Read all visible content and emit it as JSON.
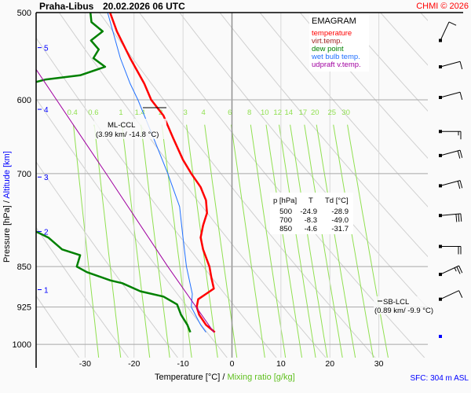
{
  "header": {
    "station": "Praha-Libus",
    "time": "20.02.2026 06 UTC",
    "copyright": "CHMI © 2026"
  },
  "legend": {
    "title": "EMAGRAM",
    "items": [
      {
        "label": "temperature",
        "color": "#ff0000"
      },
      {
        "label": "virt.temp.",
        "color": "#a02020"
      },
      {
        "label": "dew point",
        "color": "#008000"
      },
      {
        "label": "wet bulb temp.",
        "color": "#2070ff"
      },
      {
        "label": "udpraft v.temp.",
        "color": "#a000a0"
      }
    ]
  },
  "table": {
    "headers": [
      "p [hPa]",
      "T",
      "Td [°C]"
    ],
    "rows": [
      [
        "500",
        "-24.9",
        "-28.9"
      ],
      [
        "700",
        "-8.3",
        "-49.0"
      ],
      [
        "850",
        "-4.6",
        "-31.7"
      ]
    ]
  },
  "annotations": {
    "ml_ccl": {
      "label": "ML-CCL",
      "detail": "(3.99 km/ -14.8 °C)"
    },
    "sb_lcl": {
      "label": "SB-LCL",
      "detail": "(0.89 km/ -9.9 °C)"
    }
  },
  "axes": {
    "ylabel": "Pressure [hPa]",
    "ylabel_sep": "/",
    "ylabel2": "Altitude [km]",
    "xlabel": "Temperature [°C]",
    "xlabel_sep": "/",
    "xlabel2": "Mixing ratio [g/kg]",
    "sfc": "SFC: 304 m ASL"
  },
  "chart_data": {
    "type": "line",
    "title": "EMAGRAM",
    "xlim": [
      -40,
      40
    ],
    "ylim_hpa": [
      500,
      1030
    ],
    "y_scale": "log",
    "x_ticks": [
      "-30",
      "-20",
      "-10",
      "0",
      "10",
      "20",
      "30"
    ],
    "y_ticks": [
      "500",
      "600",
      "700",
      "850",
      "925",
      "1000"
    ],
    "altitude_ticks_km": [
      "5",
      "4",
      "3",
      "2",
      "1"
    ],
    "altitude_tick_pressures": [
      538,
      612,
      705,
      790,
      892
    ],
    "mixing_ratio_labels": [
      "0.4",
      "0.6",
      "1",
      "1.4",
      "2",
      "3",
      "4",
      "6",
      "8",
      "10",
      "12",
      "14",
      "17",
      "20",
      "25",
      "30"
    ],
    "colors": {
      "mixing_ratio": "#90e050",
      "dry_adiabat": "#d0d0d0",
      "grid": "#b0b0b0",
      "altitude": "#0000ff"
    },
    "series": [
      {
        "name": "temperature",
        "color": "#ff0000",
        "p": [
          500,
          520,
          550,
          580,
          600,
          620,
          650,
          680,
          700,
          720,
          740,
          760,
          780,
          800,
          820,
          850,
          870,
          890,
          900,
          910,
          925,
          940,
          960,
          975
        ],
        "t": [
          -24.9,
          -23.5,
          -20.8,
          -17.9,
          -16.5,
          -14,
          -12,
          -10,
          -8.3,
          -6.4,
          -5.3,
          -5.1,
          -5.9,
          -6.4,
          -5.9,
          -4.6,
          -4.2,
          -3.7,
          -5.3,
          -6.9,
          -7.2,
          -6.7,
          -5.3,
          -3.5
        ]
      },
      {
        "name": "dew point",
        "color": "#008000",
        "p": [
          500,
          510,
          520,
          530,
          540,
          550,
          560,
          570,
          575,
          578
        ],
        "t": [
          -28.9,
          -28.7,
          -26.4,
          -28.8,
          -27.2,
          -28.3,
          -25.9,
          -31,
          -38,
          -40
        ]
      },
      {
        "name": "dew point",
        "color": "#008000",
        "p": [
          790,
          800,
          820,
          830,
          850,
          860,
          875,
          880,
          895,
          905,
          920,
          940,
          960,
          975
        ],
        "t": [
          -40,
          -37.5,
          -34.7,
          -31,
          -31.7,
          -29.6,
          -24.8,
          -22.4,
          -18.7,
          -14,
          -11.2,
          -10.4,
          -9.1,
          -8.5
        ]
      },
      {
        "name": "wet bulb temp.",
        "color": "#2070ff",
        "p": [
          500,
          550,
          580,
          600,
          650,
          700,
          750,
          800,
          850,
          900,
          925,
          960,
          975
        ],
        "t": [
          -25.4,
          -22.8,
          -20.8,
          -19.2,
          -16,
          -13.1,
          -10.7,
          -10,
          -9.3,
          -8.1,
          -8.3,
          -6.4,
          -5.3
        ]
      },
      {
        "name": "udpraft v.temp.",
        "color": "#a000a0",
        "p": [
          563,
          700,
          850,
          975
        ],
        "t": [
          -40,
          -25.7,
          -13.1,
          -3.7
        ]
      }
    ],
    "wind_barbs": [
      {
        "p": 530,
        "dir": 25,
        "speed_kt": 10
      },
      {
        "p": 560,
        "dir": 75,
        "speed_kt": 10
      },
      {
        "p": 597,
        "dir": 75,
        "speed_kt": 10
      },
      {
        "p": 641,
        "dir": 90,
        "speed_kt": 15
      },
      {
        "p": 674,
        "dir": 75,
        "speed_kt": 20
      },
      {
        "p": 718,
        "dir": 75,
        "speed_kt": 20
      },
      {
        "p": 764,
        "dir": 85,
        "speed_kt": 30
      },
      {
        "p": 815,
        "dir": 90,
        "speed_kt": 20
      },
      {
        "p": 864,
        "dir": 65,
        "speed_kt": 25
      },
      {
        "p": 910,
        "dir": 65,
        "speed_kt": 10
      }
    ]
  }
}
